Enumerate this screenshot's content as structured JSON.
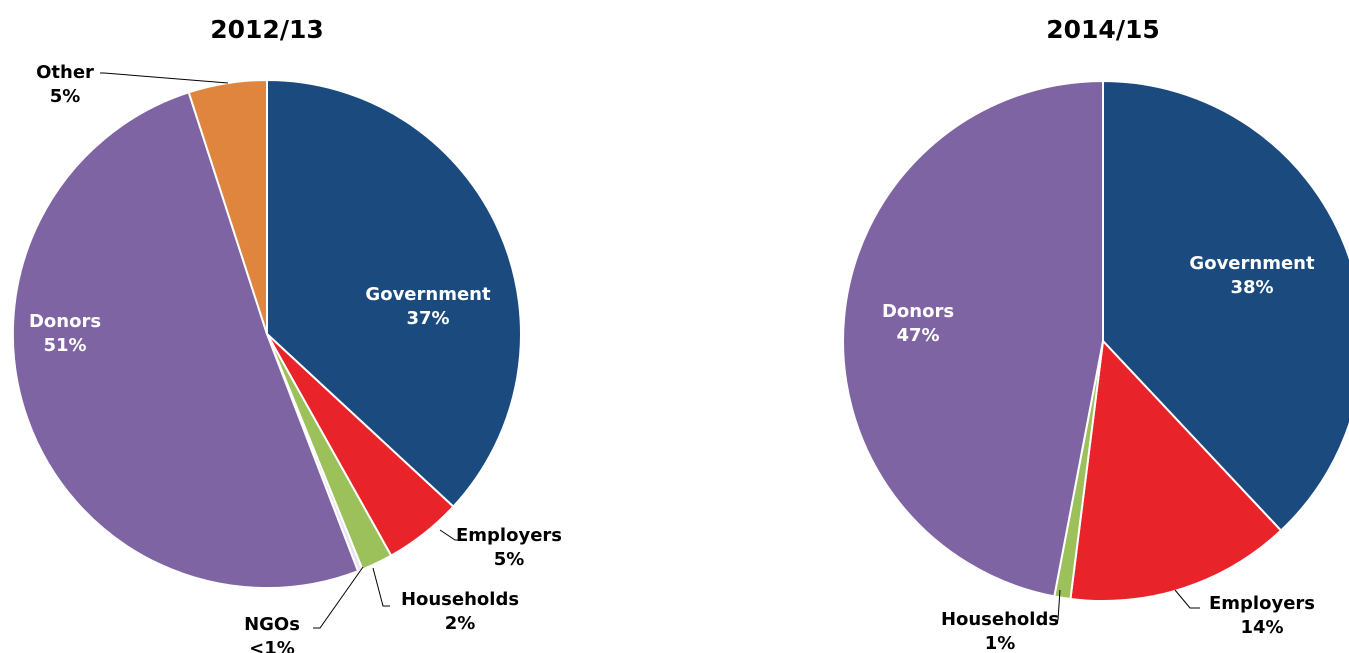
{
  "chart_data": [
    {
      "type": "pie",
      "title": "2012/13",
      "start_angle_deg": 0,
      "direction": "clockwise",
      "slices": [
        {
          "label": "Government",
          "value": 37,
          "display": "37%",
          "color": "#1B4A7E",
          "label_position": "inside"
        },
        {
          "label": "Employers",
          "value": 5,
          "display": "5%",
          "color": "#E8232A",
          "label_position": "outside"
        },
        {
          "label": "Households",
          "value": 2,
          "display": "2%",
          "color": "#9CC05A",
          "label_position": "outside"
        },
        {
          "label": "NGOs",
          "value": 0.3,
          "display": "<1%",
          "color": "#E8E3EE",
          "label_position": "outside"
        },
        {
          "label": "Donors",
          "value": 51,
          "display": "51%",
          "color": "#7F64A3",
          "label_position": "inside"
        },
        {
          "label": "Other",
          "value": 5,
          "display": "5%",
          "color": "#E0853D",
          "label_position": "outside"
        }
      ]
    },
    {
      "type": "pie",
      "title": "2014/15",
      "start_angle_deg": 0,
      "direction": "clockwise",
      "slices": [
        {
          "label": "Government",
          "value": 38,
          "display": "38%",
          "color": "#1B4A7E",
          "label_position": "inside"
        },
        {
          "label": "Employers",
          "value": 14,
          "display": "14%",
          "color": "#E8232A",
          "label_position": "outside"
        },
        {
          "label": "Households",
          "value": 1,
          "display": "1%",
          "color": "#9CC05A",
          "label_position": "outside"
        },
        {
          "label": "Donors",
          "value": 47,
          "display": "47%",
          "color": "#7F64A3",
          "label_position": "inside"
        }
      ]
    }
  ]
}
